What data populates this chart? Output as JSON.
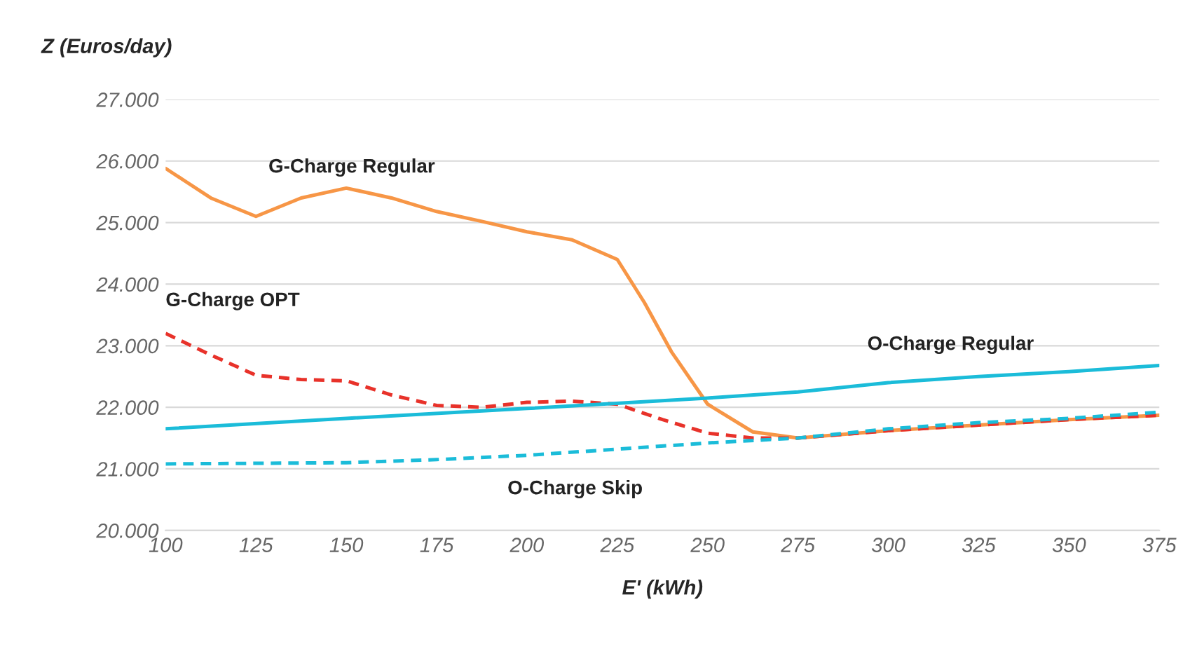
{
  "chart_data": {
    "type": "line",
    "xlabel": "E' (kWh)",
    "ylabel": "Z (Euros/day)",
    "xlim": [
      100,
      375
    ],
    "xticks": [
      100,
      125,
      150,
      175,
      200,
      225,
      250,
      275,
      300,
      325,
      350,
      375
    ],
    "ylim": [
      20000,
      27000
    ],
    "yticks": [
      {
        "value": 20000,
        "label": "20.000"
      },
      {
        "value": 21000,
        "label": "21.000"
      },
      {
        "value": 22000,
        "label": "22.000"
      },
      {
        "value": 23000,
        "label": "23.000"
      },
      {
        "value": 24000,
        "label": "24.000"
      },
      {
        "value": 25000,
        "label": "25.000"
      },
      {
        "value": 26000,
        "label": "26.000"
      },
      {
        "value": 27000,
        "label": "27.000"
      }
    ],
    "grid": "y",
    "legend": false,
    "series": [
      {
        "name": "G-Charge Regular",
        "color": "#f79646",
        "line_style": "solid",
        "x": [
          100,
          112.5,
          125,
          137.5,
          150,
          162.5,
          175,
          187.5,
          200,
          212.5,
          225,
          232.5,
          240,
          250,
          262.5,
          275,
          300,
          325,
          350,
          375
        ],
        "values": [
          25880,
          25400,
          25100,
          25400,
          25560,
          25400,
          25180,
          25020,
          24850,
          24720,
          24400,
          23700,
          22900,
          22050,
          21600,
          21500,
          21620,
          21710,
          21800,
          21870
        ]
      },
      {
        "name": "G-Charge OPT",
        "color": "#e8322a",
        "line_style": "dashed",
        "x": [
          100,
          112.5,
          125,
          137.5,
          150,
          162.5,
          175,
          187.5,
          200,
          212.5,
          225,
          237.5,
          250,
          262.5,
          275,
          300,
          325,
          350,
          375
        ],
        "values": [
          23200,
          22850,
          22520,
          22450,
          22430,
          22200,
          22030,
          22000,
          22080,
          22100,
          22050,
          21800,
          21580,
          21500,
          21500,
          21620,
          21710,
          21800,
          21870
        ]
      },
      {
        "name": "O-Charge Regular",
        "color": "#1bbcd9",
        "line_style": "solid",
        "x": [
          100,
          150,
          200,
          250,
          275,
          300,
          325,
          350,
          375
        ],
        "values": [
          21650,
          21820,
          21980,
          22150,
          22250,
          22400,
          22500,
          22580,
          22680
        ]
      },
      {
        "name": "O-Charge Skip",
        "color": "#1bbcd9",
        "line_style": "dashed",
        "x": [
          100,
          150,
          175,
          200,
          225,
          250,
          275,
          300,
          325,
          350,
          375
        ],
        "values": [
          21080,
          21100,
          21150,
          21220,
          21320,
          21420,
          21500,
          21650,
          21750,
          21820,
          21920
        ]
      }
    ]
  }
}
